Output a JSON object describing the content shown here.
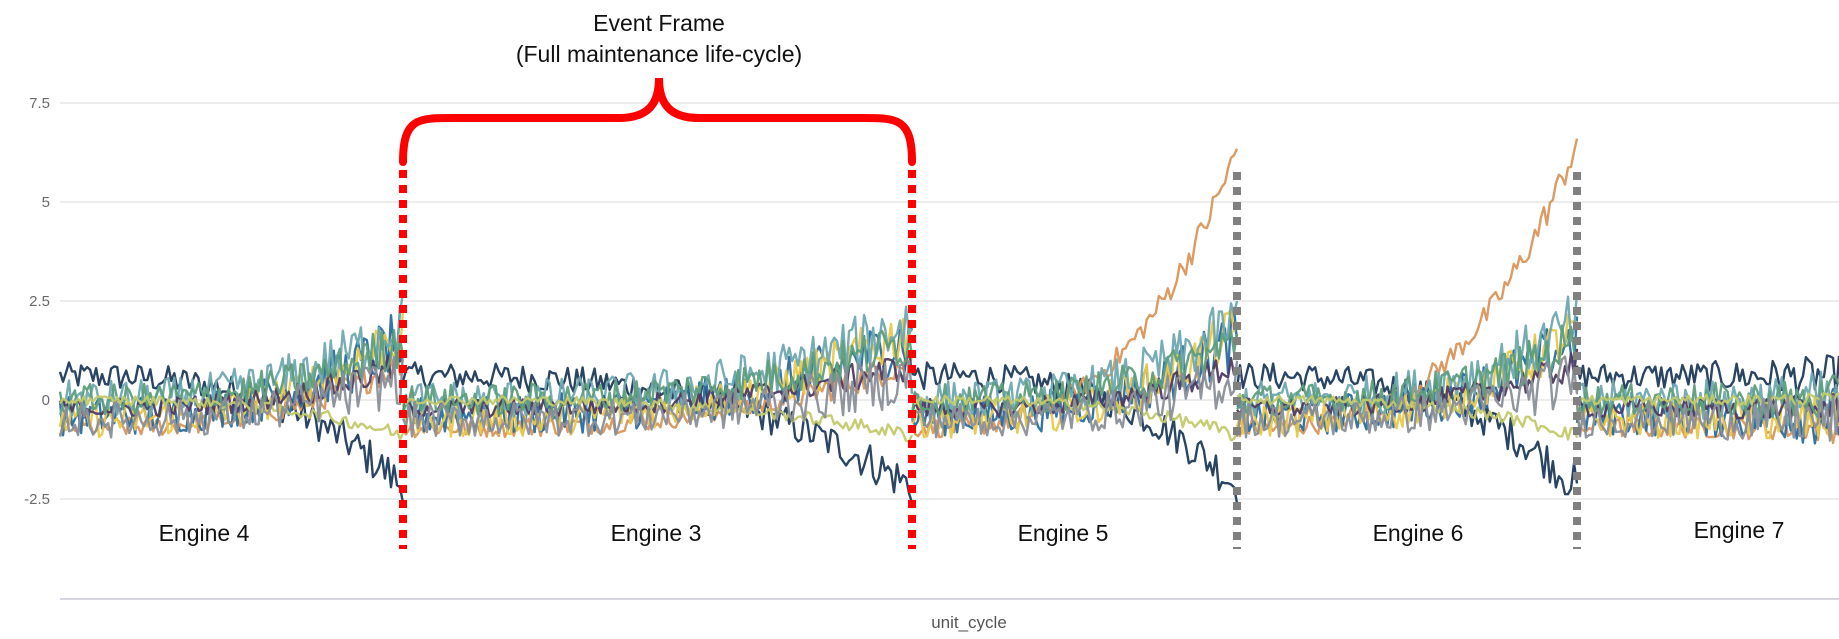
{
  "chart_data": {
    "type": "line",
    "title": "",
    "annotation": {
      "line1": "Event Frame",
      "line2": "(Full maintenance life-cycle)"
    },
    "xlabel": "unit_cycle",
    "ylabel": "",
    "ylim": [
      -2.5,
      7.5
    ],
    "yticks": [
      "7.5",
      "5",
      "2.5",
      "0",
      "-2.5"
    ],
    "ytick_values": [
      7.5,
      5,
      2.5,
      0,
      -2.5
    ],
    "grid": true,
    "legend": "none",
    "segments": [
      {
        "label": "Engine 4",
        "start": 0,
        "end": 1,
        "peak": 2.6,
        "boundary": "red-dotted"
      },
      {
        "label": "Engine 3",
        "start": 1,
        "end": 2.5,
        "peak": 2.6,
        "boundary": "red-dotted"
      },
      {
        "label": "Engine 5",
        "start": 2.5,
        "end": 3.45,
        "peak": 6.3,
        "boundary": "gray-dotted"
      },
      {
        "label": "Engine 6",
        "start": 3.45,
        "end": 4.45,
        "peak": 6.5,
        "boundary": "gray-dotted"
      },
      {
        "label": "Engine 7",
        "start": 4.45,
        "end": 5.25,
        "peak": 0.3,
        "boundary": "none"
      }
    ],
    "series": [
      {
        "color": "#1f3b5c",
        "base": 0.6,
        "end": -2.2,
        "noise": 0.35
      },
      {
        "color": "#d9965a",
        "base": -0.7,
        "end": 1.0,
        "noise": 0.25
      },
      {
        "color": "#2b6e9e",
        "base": -0.4,
        "end": 1.6,
        "noise": 0.5
      },
      {
        "color": "#e8c94a",
        "base": -0.5,
        "end": 1.8,
        "noise": 0.45
      },
      {
        "color": "#6fa8b0",
        "base": 0.0,
        "end": 2.0,
        "noise": 0.5
      },
      {
        "color": "#4e3b63",
        "base": -0.2,
        "end": 0.9,
        "noise": 0.25
      },
      {
        "color": "#5e9e7c",
        "base": 0.0,
        "end": 1.5,
        "noise": 0.4
      },
      {
        "color": "#c2c96a",
        "base": 0.0,
        "end": -0.9,
        "noise": 0.12
      },
      {
        "color": "#8a8f99",
        "base": -0.5,
        "end": 0.6,
        "noise": 0.45
      }
    ]
  }
}
